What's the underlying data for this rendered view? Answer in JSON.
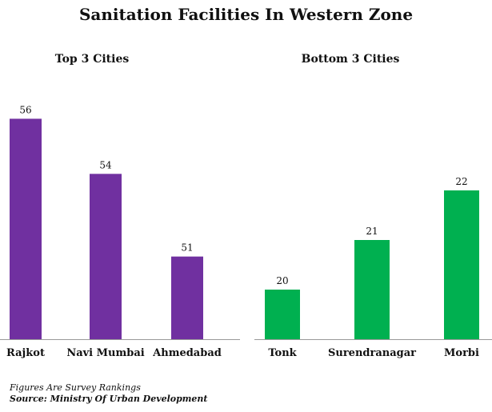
{
  "title": "Sanitation Facilities In Western Zone",
  "notes": {
    "figures": "Figures Are Survey Rankings",
    "source": "Source: Ministry Of Urban Development"
  },
  "colors": {
    "top": "#7030A0",
    "bottom": "#00B050",
    "axis": "#999999"
  },
  "chart_data": [
    {
      "type": "bar",
      "title": "Top 3 Cities",
      "categories": [
        "Rajkot",
        "Navi Mumbai",
        "Ahmedabad"
      ],
      "values": [
        56,
        54,
        51
      ],
      "ylim": [
        48,
        57
      ],
      "grid": false
    },
    {
      "type": "bar",
      "title": "Bottom 3 Cities",
      "categories": [
        "Tonk",
        "Surendranagar",
        "Morbi"
      ],
      "values": [
        20,
        21,
        22
      ],
      "ylim": [
        19,
        24
      ],
      "grid": false
    }
  ]
}
